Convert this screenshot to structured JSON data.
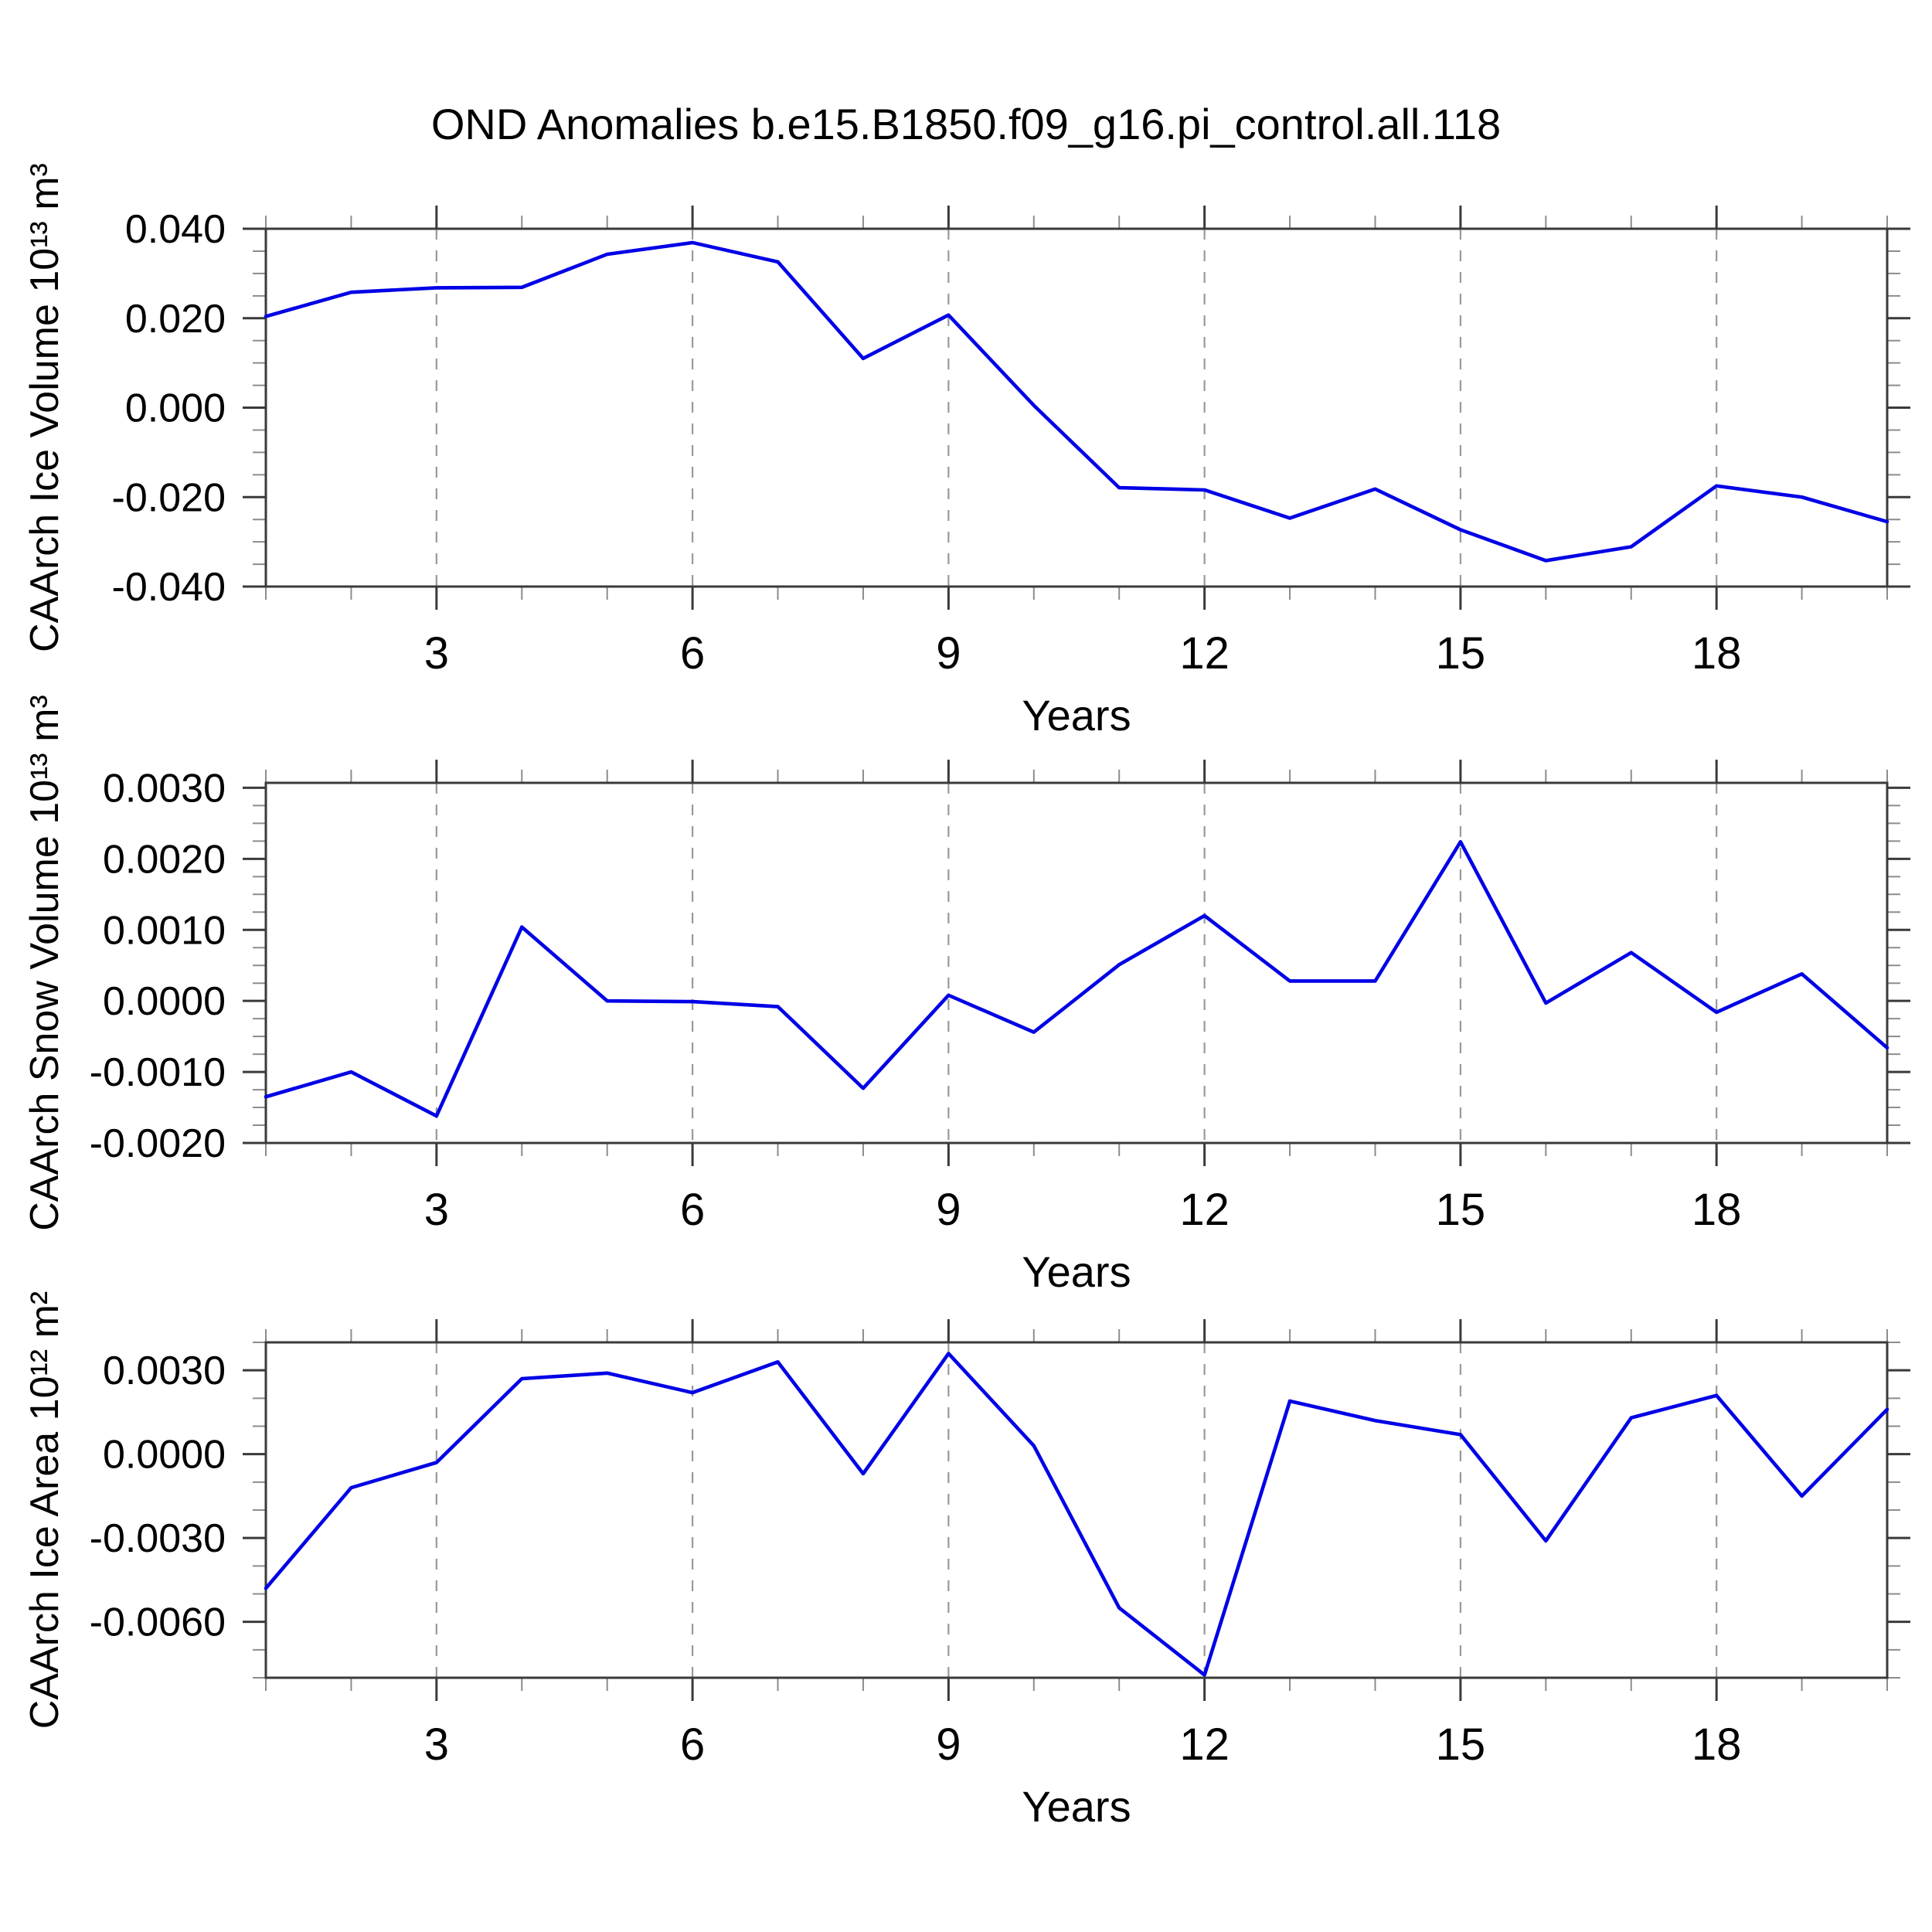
{
  "title": "OND Anomalies b.e15.B1850.f09_g16.pi_control.all.118",
  "xlabel": "Years",
  "colors": {
    "line": "#0000e6",
    "frame": "#3a3a3a",
    "major_tick": "#3a3a3a",
    "minor_tick": "#8c8c8c",
    "grid": "#999999",
    "text": "#000000",
    "background": "#ffffff"
  },
  "chart_data": [
    {
      "type": "line",
      "ylabel": "CAArch Ice Volume 10¹³ m³",
      "xlabel": "Years",
      "x": [
        1,
        2,
        3,
        4,
        5,
        6,
        7,
        8,
        9,
        10,
        11,
        12,
        13,
        14,
        15,
        16,
        17,
        18,
        19,
        20
      ],
      "values": [
        0.0204,
        0.0258,
        0.0268,
        0.0269,
        0.0343,
        0.0369,
        0.0326,
        0.011,
        0.0207,
        0.0005,
        -0.0179,
        -0.0184,
        -0.0247,
        -0.0182,
        -0.0273,
        -0.0342,
        -0.0311,
        -0.0175,
        -0.02,
        -0.0255
      ],
      "xlim": [
        1,
        20
      ],
      "x_major_ticks": [
        3,
        6,
        9,
        12,
        15,
        18
      ],
      "x_minor_step": 1,
      "ylim": [
        -0.04,
        0.04
      ],
      "y_major_ticks": [
        {
          "label": "0.040",
          "value": 0.04
        },
        {
          "label": "0.020",
          "value": 0.02
        },
        {
          "label": "0.000",
          "value": 0.0
        },
        {
          "label": "-0.020",
          "value": -0.02
        },
        {
          "label": "-0.040",
          "value": -0.04
        }
      ],
      "y_minor_step": 0.005,
      "grid": "vertical-dashed-at-x-majors",
      "legend": "none"
    },
    {
      "type": "line",
      "ylabel": "CAArch Snow Volume 10¹³ m³",
      "xlabel": "Years",
      "x": [
        1,
        2,
        3,
        4,
        5,
        6,
        7,
        8,
        9,
        10,
        11,
        12,
        13,
        14,
        15,
        16,
        17,
        18,
        19,
        20
      ],
      "values": [
        -0.00135,
        -0.001,
        -0.00162,
        0.00104,
        0.0,
        -1e-05,
        -8e-05,
        -0.00123,
        8e-05,
        -0.00044,
        0.00051,
        0.0012,
        0.00028,
        0.00028,
        0.00224,
        -3e-05,
        0.00068,
        -0.00016,
        0.00038,
        -0.00066
      ],
      "xlim": [
        1,
        20
      ],
      "x_major_ticks": [
        3,
        6,
        9,
        12,
        15,
        18
      ],
      "x_minor_step": 1,
      "ylim": [
        -0.002,
        0.00307
      ],
      "y_major_ticks": [
        {
          "label": "0.0030",
          "value": 0.003
        },
        {
          "label": "0.0020",
          "value": 0.002
        },
        {
          "label": "0.0010",
          "value": 0.001
        },
        {
          "label": "0.0000",
          "value": 0.0
        },
        {
          "label": "-0.0010",
          "value": -0.001
        },
        {
          "label": "-0.0020",
          "value": -0.002
        }
      ],
      "y_minor_step": 0.00025,
      "grid": "vertical-dashed-at-x-majors",
      "legend": "none"
    },
    {
      "type": "line",
      "ylabel": "CAArch Ice Area 10¹² m²",
      "xlabel": "Years",
      "x": [
        1,
        2,
        3,
        4,
        5,
        6,
        7,
        8,
        9,
        10,
        11,
        12,
        13,
        14,
        15,
        16,
        17,
        18,
        19,
        20
      ],
      "values": [
        -0.0048,
        -0.0012,
        -0.0003,
        0.0027,
        0.0029,
        0.0022,
        0.0033,
        -0.0007,
        0.0036,
        0.0003,
        -0.0055,
        -0.0079,
        0.0019,
        0.0012,
        0.0007,
        -0.0031,
        0.0013,
        0.0021,
        -0.0015,
        0.0016
      ],
      "xlim": [
        1,
        20
      ],
      "x_major_ticks": [
        3,
        6,
        9,
        12,
        15,
        18
      ],
      "x_minor_step": 1,
      "ylim": [
        -0.008,
        0.004
      ],
      "y_major_ticks": [
        {
          "label": "0.0030",
          "value": 0.003
        },
        {
          "label": "0.0000",
          "value": 0.0
        },
        {
          "label": "-0.0030",
          "value": -0.003
        },
        {
          "label": "-0.0060",
          "value": -0.006
        }
      ],
      "y_minor_step": 0.001,
      "grid": "vertical-dashed-at-x-majors",
      "legend": "none"
    }
  ]
}
